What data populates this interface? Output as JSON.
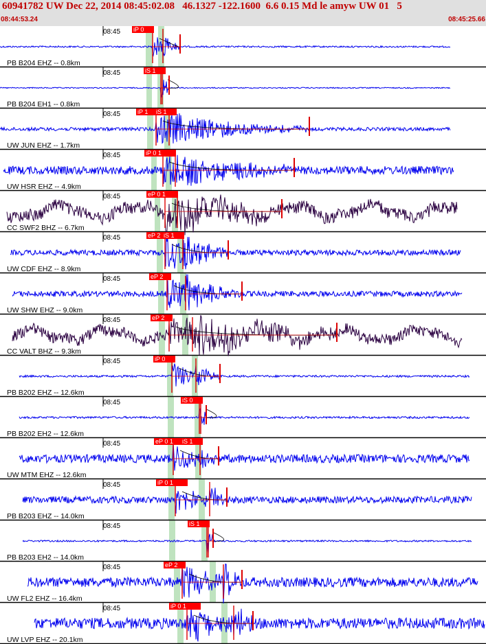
{
  "header": {
    "title": "60941782 UW Dec 22, 2014 08:45:02.08   46.1327 -122.1600  6.6 0.15 Md le amyw UW 01   5",
    "start_time": "08:44:53.24",
    "end_time": "08:45:25.66"
  },
  "colors": {
    "trace_blue": "#0000ee",
    "trace_dark": "#2a0040",
    "pick_red": "#dd0000",
    "pick_window_green": "#bfe3bf",
    "header_bg": "#e0e0e0",
    "divider": "#000000"
  },
  "traces": [
    {
      "label": "PB B204 EHZ -- 0.8km",
      "time_tick": "08:45",
      "picks": [
        "iP 0"
      ]
    },
    {
      "label": "PB B204 EH1 -- 0.8km",
      "time_tick": "08:45",
      "picks": [
        "iS 1"
      ]
    },
    {
      "label": "UW JUN EHZ -- 1.7km",
      "time_tick": "08:45",
      "picks": [
        "iP 1",
        "iS 1"
      ]
    },
    {
      "label": "UW HSR EHZ -- 4.9km",
      "time_tick": "08:45",
      "picks": [
        "iP 0 1"
      ]
    },
    {
      "label": "CC SWF2 BHZ -- 6.7km",
      "time_tick": "08:45",
      "picks": [
        "eP 0 1"
      ]
    },
    {
      "label": "UW CDF EHZ -- 8.9km",
      "time_tick": "08:45",
      "picks": [
        "eP 2",
        "iS 1"
      ]
    },
    {
      "label": "UW SHW EHZ -- 9.0km",
      "time_tick": "08:45",
      "picks": [
        "eP 2"
      ]
    },
    {
      "label": "CC VALT BHZ -- 9.3km",
      "time_tick": "08:45",
      "picks": [
        "eP 2"
      ]
    },
    {
      "label": "PB B202 EHZ -- 12.6km",
      "time_tick": "08:45",
      "picks": [
        "iP 0"
      ]
    },
    {
      "label": "PB B202 EH2 -- 12.6km",
      "time_tick": "08:45",
      "picks": [
        "iS 0"
      ]
    },
    {
      "label": "UW MTM EHZ -- 12.6km",
      "time_tick": "08:45",
      "picks": [
        "eP 0 1",
        "iS 1"
      ]
    },
    {
      "label": "PB B203 EHZ -- 14.0km",
      "time_tick": "08:45",
      "picks": [
        "iP 0 1"
      ]
    },
    {
      "label": "PB B203 EH2 -- 14.0km",
      "time_tick": "08:45",
      "picks": [
        "iS 1"
      ]
    },
    {
      "label": "UW FL2 EHZ -- 16.4km",
      "time_tick": "08:45",
      "picks": [
        "eP 2"
      ]
    },
    {
      "label": "UW LVP EHZ -- 20.1km",
      "time_tick": "08:45",
      "picks": [
        "iP 0 1"
      ]
    }
  ]
}
